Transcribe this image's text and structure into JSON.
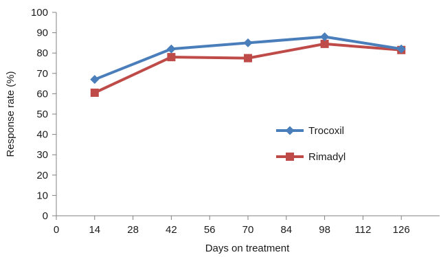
{
  "chart_data": {
    "type": "line",
    "title": "",
    "xlabel": "Days on treatment",
    "ylabel": "Response rate (%)",
    "xlim": [
      0,
      140
    ],
    "ylim": [
      0,
      100
    ],
    "x_ticks": [
      0,
      14,
      28,
      42,
      56,
      70,
      84,
      98,
      112,
      126
    ],
    "y_ticks": [
      0,
      10,
      20,
      30,
      40,
      50,
      60,
      70,
      80,
      90,
      100
    ],
    "grid": false,
    "legend_position": "center-right",
    "series": [
      {
        "name": "Trocoxil",
        "color": "#4a7ebb",
        "marker": "diamond",
        "x": [
          14,
          42,
          70,
          98,
          126
        ],
        "y": [
          67,
          82,
          85,
          88,
          82
        ]
      },
      {
        "name": "Rimadyl",
        "color": "#be4b48",
        "marker": "square",
        "x": [
          14,
          42,
          70,
          98,
          126
        ],
        "y": [
          60.5,
          78,
          77.5,
          84.5,
          81.5
        ]
      }
    ]
  }
}
